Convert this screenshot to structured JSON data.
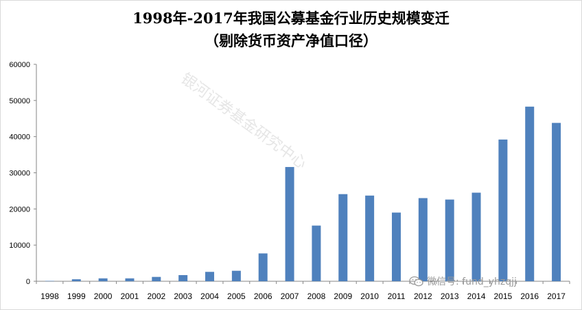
{
  "chart_data": {
    "type": "bar",
    "title": "1998年-2017年我国公募基金行业历史规模变迁",
    "subtitle": "（剔除货币资产净值口径）",
    "categories": [
      "1998",
      "1999",
      "2000",
      "2001",
      "2002",
      "2003",
      "2004",
      "2005",
      "2006",
      "2007",
      "2008",
      "2009",
      "2010",
      "2011",
      "2012",
      "2013",
      "2014",
      "2015",
      "2016",
      "2017"
    ],
    "values": [
      100,
      550,
      800,
      800,
      1200,
      1700,
      2600,
      2900,
      7700,
      31600,
      15400,
      24100,
      23700,
      19000,
      23000,
      22600,
      24500,
      39200,
      48300,
      43800
    ],
    "ylim": [
      0,
      60000
    ],
    "yticks": [
      0,
      10000,
      20000,
      30000,
      40000,
      50000,
      60000
    ],
    "bar_color": "#4f81bd",
    "grid": false
  },
  "watermark": "银河证券基金研究中心",
  "wechat_label": "微信号: fund_yhzqjj"
}
